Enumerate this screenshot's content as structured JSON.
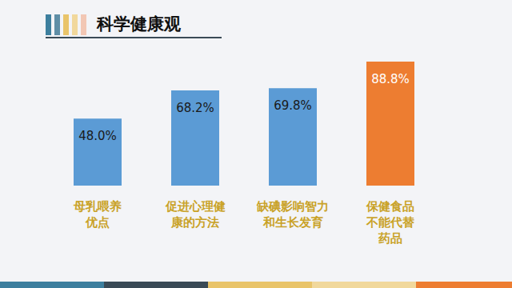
{
  "chart_data": {
    "type": "bar",
    "title": "科学健康观",
    "categories": [
      "母乳喂养\n优点",
      "促进心理健\n康的方法",
      "缺碘影响智力\n和生长发育",
      "保健食品\n不能代替\n药品"
    ],
    "values": [
      48.0,
      68.2,
      69.8,
      88.8
    ],
    "value_labels": [
      "48.0%",
      "68.2%",
      "69.8%",
      "88.8%"
    ],
    "colors": [
      "#5b9bd5",
      "#5b9bd5",
      "#5b9bd5",
      "#ed7d31"
    ],
    "ylim": [
      0,
      90
    ],
    "data_labels": true,
    "tick_labels": "x",
    "grid": false
  }
}
